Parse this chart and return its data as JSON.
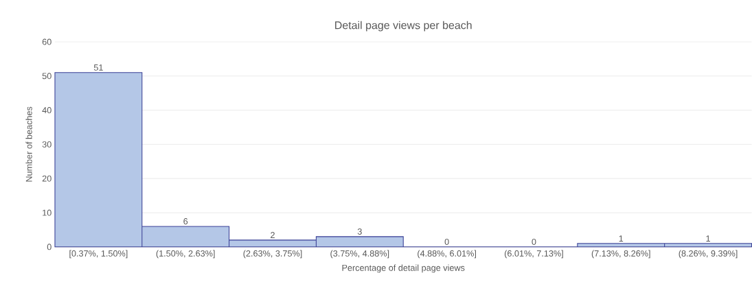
{
  "chart_data": {
    "type": "bar",
    "title": "Detail page views per beach",
    "xlabel": "Percentage of detail page views",
    "ylabel": "Number of beaches",
    "categories": [
      "[0.37%, 1.50%]",
      "(1.50%, 2.63%]",
      "(2.63%, 3.75%]",
      "(3.75%, 4.88%]",
      "(4.88%, 6.01%]",
      "(6.01%, 7.13%]",
      "(7.13%, 8.26%]",
      "(8.26%, 9.39%]"
    ],
    "values": [
      51,
      6,
      2,
      3,
      0,
      0,
      1,
      1
    ],
    "color": "#b4c7e7",
    "ylim": [
      0,
      60
    ],
    "yticks": [
      0,
      10,
      20,
      30,
      40,
      50,
      60
    ],
    "grid": "y",
    "data_labels": true
  }
}
